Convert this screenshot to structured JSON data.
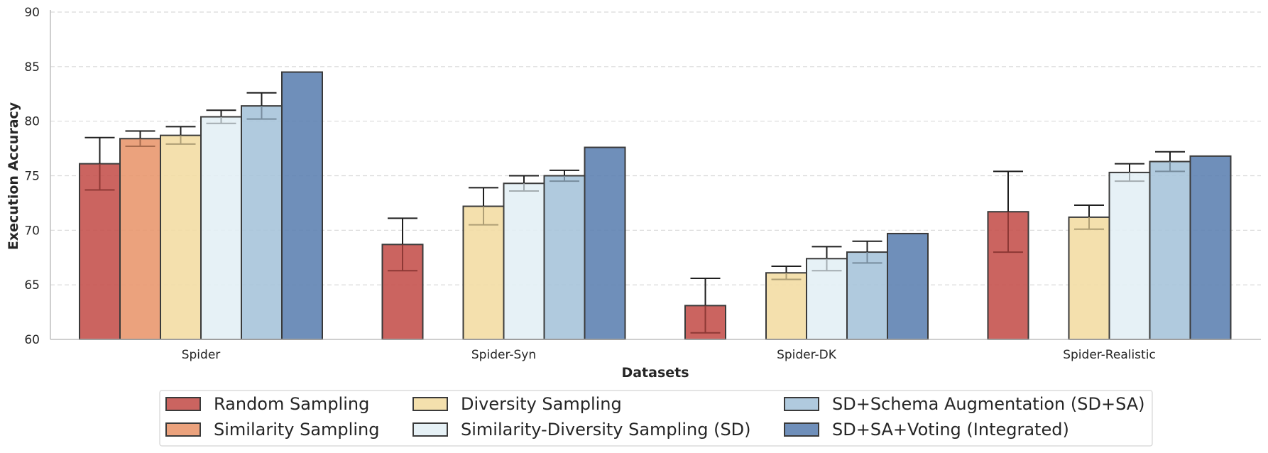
{
  "chart_data": {
    "type": "bar",
    "title": "",
    "xlabel": "Datasets",
    "ylabel": "Execution Accuracy",
    "ylim": [
      60,
      90
    ],
    "yticks": [
      60,
      65,
      70,
      75,
      80,
      85,
      90
    ],
    "grid": "y-dashed",
    "legend_position": "bottom-center",
    "categories": [
      "Spider",
      "Spider-Syn",
      "Spider-DK",
      "Spider-Realistic"
    ],
    "series": [
      {
        "name": "Random Sampling",
        "color": "#c44e4a",
        "values": [
          76.1,
          68.7,
          63.1,
          71.7
        ],
        "errors": [
          2.4,
          2.4,
          2.5,
          3.7
        ]
      },
      {
        "name": "Similarity Sampling",
        "color": "#e8956b",
        "values": [
          78.4,
          null,
          null,
          null
        ],
        "errors": [
          0.7,
          null,
          null,
          null
        ]
      },
      {
        "name": "Diversity Sampling",
        "color": "#f2dca2",
        "values": [
          78.7,
          72.2,
          66.1,
          71.2
        ],
        "errors": [
          0.8,
          1.7,
          0.6,
          1.1
        ]
      },
      {
        "name": "Similarity-Diversity Sampling (SD)",
        "color": "#e3eff5",
        "values": [
          80.4,
          74.3,
          67.4,
          75.3
        ],
        "errors": [
          0.6,
          0.7,
          1.1,
          0.8
        ]
      },
      {
        "name": "SD+Schema Augmentation (SD+SA)",
        "color": "#a5c3da",
        "values": [
          81.4,
          75.0,
          68.0,
          76.3
        ],
        "errors": [
          1.2,
          0.5,
          1.0,
          0.9
        ]
      },
      {
        "name": "SD+SA+Voting (Integrated)",
        "color": "#5b7fb0",
        "values": [
          84.5,
          77.6,
          69.7,
          76.8
        ],
        "errors": [
          null,
          null,
          null,
          null
        ]
      }
    ]
  }
}
